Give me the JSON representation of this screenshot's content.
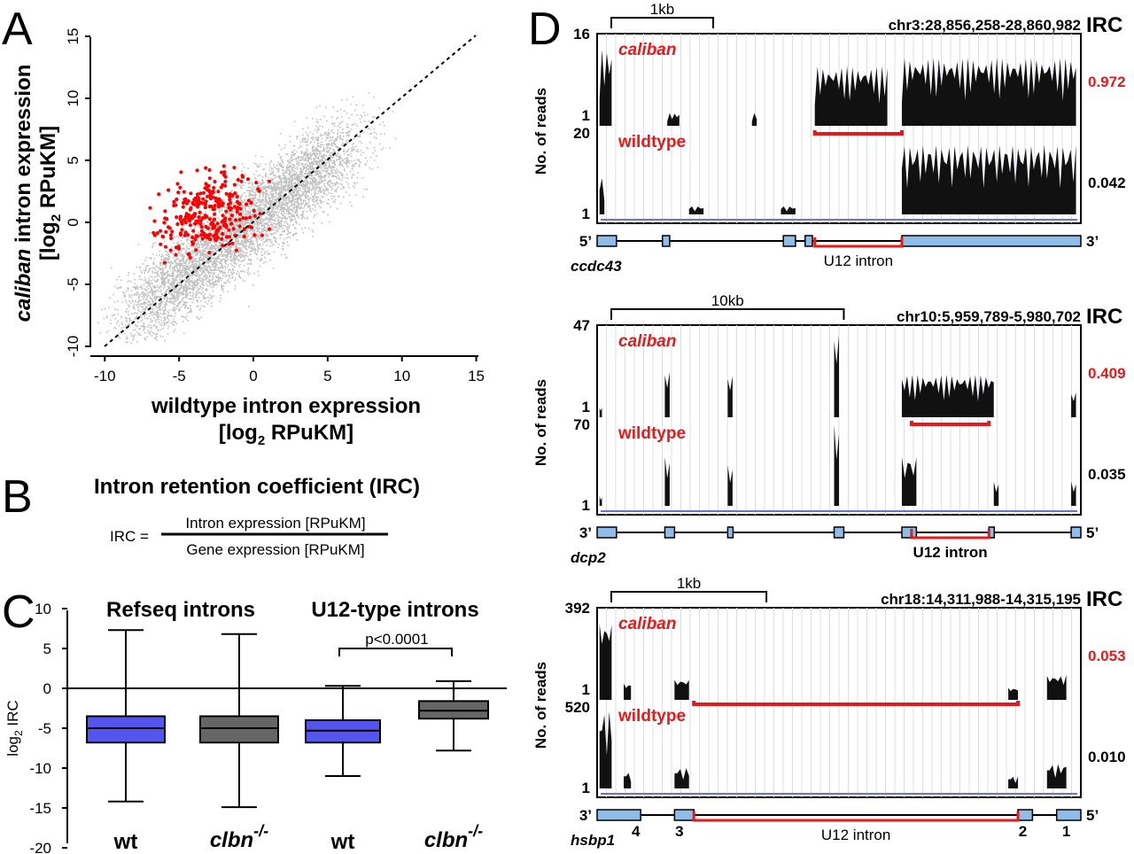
{
  "panels": {
    "a": "A",
    "b": "B",
    "c": "C",
    "d": "D"
  },
  "panel_a": {
    "ylabel_italic": "caliban",
    "ylabel_rest": " intron expression",
    "ylabel_unit_pre": "[log",
    "ylabel_unit_sub": "2",
    "ylabel_unit_post": " RPuKM]",
    "xlabel": "wildtype intron expression",
    "xlabel_unit_pre": "[log",
    "xlabel_unit_sub": "2",
    "xlabel_unit_post": " RPuKM]",
    "colors": {
      "all_introns": "#c0c0c0",
      "u12_introns": "#ff0000"
    }
  },
  "panel_b": {
    "title": "Intron retention coefficient (IRC)",
    "lhs": "IRC =",
    "numerator": "Intron expression [RPuKM]",
    "denominator": "Gene expression [RPuKM]"
  },
  "panel_c": {
    "ylabel_pre": "log",
    "ylabel_sub": "2",
    "ylabel_post": " IRC",
    "group1": "Refseq introns",
    "group2": "U12-type introns",
    "pvalue": "p<0.0001",
    "xlab_wt1": "wt",
    "xlab_wt2": "wt",
    "xlab_clbn": "clbn",
    "xlab_clbn_sup": "-/-",
    "colors": {
      "wt": "#5555ee",
      "clbn": "#666666"
    }
  },
  "panel_d": {
    "track_label": "No. of reads",
    "irc_label": "IRC",
    "caliban": "caliban",
    "wildtype": "wildtype",
    "intron_label": "U12 intron",
    "genes": [
      {
        "name": "ccdc43",
        "scale": "1kb",
        "coords": "chr3:28,856,258-28,860,982",
        "cal_max": "16",
        "cal_min": "1",
        "wt_max": "20",
        "wt_min": "1",
        "irc_cal": "0.972",
        "irc_wt": "0.042",
        "left_end": "5’",
        "right_end": "3’",
        "exon_numbers": []
      },
      {
        "name": "dcp2",
        "scale": "10kb",
        "coords": "chr10:5,959,789-5,980,702",
        "cal_max": "47",
        "cal_min": "1",
        "wt_max": "70",
        "wt_min": "1",
        "irc_cal": "0.409",
        "irc_wt": "0.035",
        "left_end": "3’",
        "right_end": "5’",
        "exon_numbers": []
      },
      {
        "name": "hsbp1",
        "scale": "1kb",
        "coords": "chr18:14,311,988-14,315,195",
        "cal_max": "392",
        "cal_min": "1",
        "wt_max": "520",
        "wt_min": "1",
        "irc_cal": "0.053",
        "irc_wt": "0.010",
        "left_end": "3’",
        "right_end": "5’",
        "exon_numbers": [
          "4",
          "3",
          "2",
          "1"
        ]
      }
    ]
  },
  "chart_data": [
    {
      "type": "scatter",
      "xlabel": "wildtype intron expression [log2 RPuKM]",
      "ylabel": "caliban intron expression [log2 RPuKM]",
      "xlim": [
        -11,
        15.5
      ],
      "ylim": [
        -10.5,
        15.5
      ],
      "xticks": [
        -10,
        -5,
        0,
        5,
        10,
        15
      ],
      "yticks": [
        -10,
        -5,
        0,
        5,
        10,
        15
      ],
      "series": [
        {
          "name": "",
          "color": "#c0c0c0",
          "description_points": "dense cloud along diagonal"
        },
        {
          "name": "",
          "color": "#ff0000"
        }
      ],
      "diagonal": [
        [
          -10,
          -10
        ],
        [
          15,
          15
        ]
      ]
    },
    {
      "type": "box",
      "ylabel": "log2 IRC",
      "ylim": [
        -20,
        10
      ],
      "yticks": [
        -20,
        -15,
        -10,
        -5,
        0,
        5,
        10
      ],
      "categories": [
        "wt",
        "clbn-/-",
        "wt",
        "clbn-/-"
      ],
      "boxes": [
        {
          "min": -14.2,
          "q1": -6.8,
          "median": -5.0,
          "q3": -3.5,
          "max": 7.3
        },
        {
          "min": -14.9,
          "q1": -6.8,
          "median": -5.0,
          "q3": -3.5,
          "max": 6.8
        },
        {
          "min": -11.0,
          "q1": -6.8,
          "median": -5.3,
          "q3": -4.0,
          "max": 0.3
        },
        {
          "min": -7.8,
          "q1": -3.8,
          "median": -2.8,
          "q3": -1.6,
          "max": 0.9
        }
      ]
    }
  ]
}
